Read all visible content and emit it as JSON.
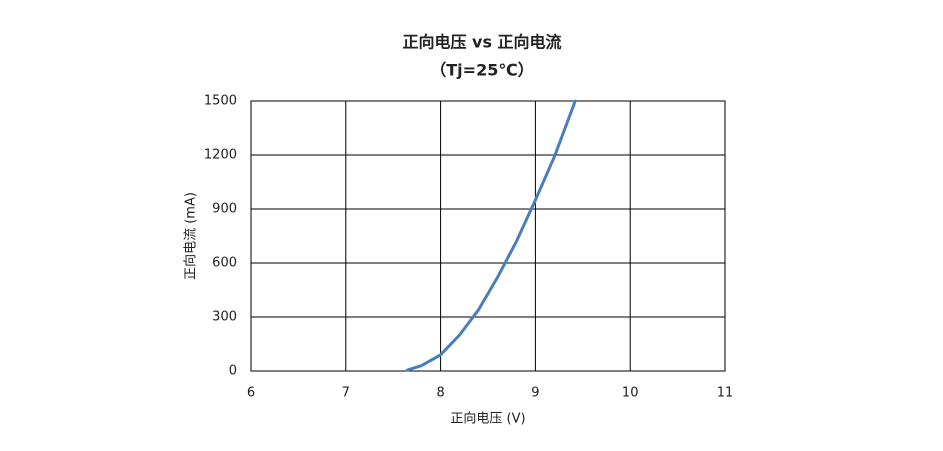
{
  "chart_data": {
    "type": "line",
    "title": "正向电压 vs 正向电流",
    "subtitle": "（Tj=25℃）",
    "x_label": "正向电压 (V)",
    "y_label": "正向电流 (mA)",
    "x": [
      7.65,
      7.8,
      8.0,
      8.2,
      8.4,
      8.6,
      8.8,
      9.0,
      9.2,
      9.42
    ],
    "values": [
      5,
      30,
      90,
      200,
      340,
      520,
      720,
      950,
      1190,
      1500
    ],
    "color": "#4a7ebb",
    "xlim": [
      6,
      11
    ],
    "xticks": [
      6,
      7,
      8,
      9,
      10,
      11
    ],
    "ylim": [
      0,
      1500
    ],
    "yticks": [
      0,
      300,
      600,
      900,
      1200,
      1500
    ],
    "grid": true
  }
}
